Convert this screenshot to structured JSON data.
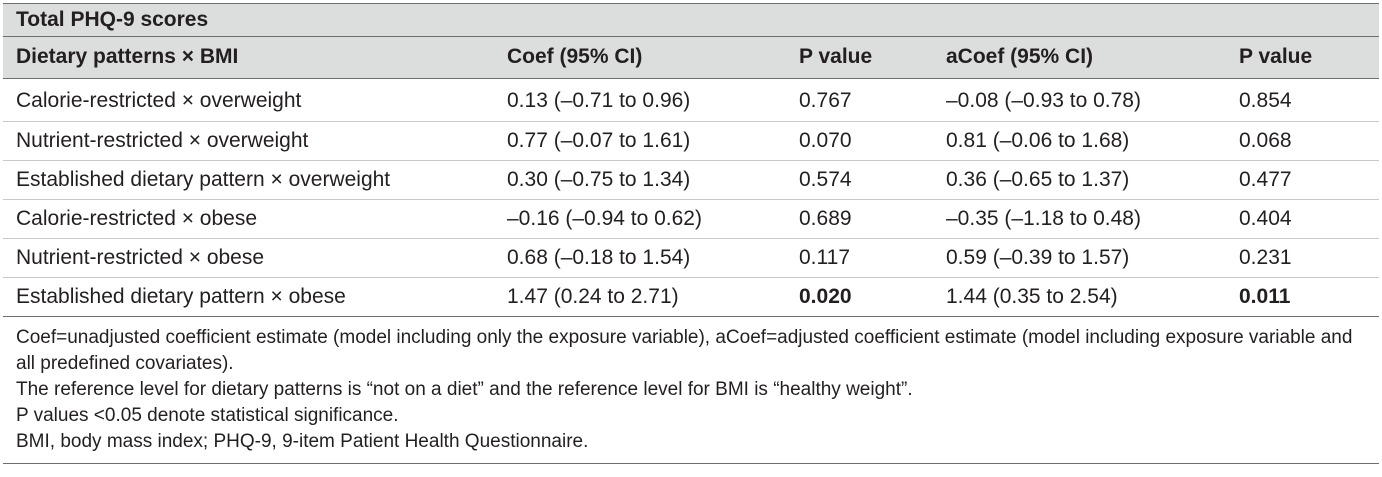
{
  "table_title": "Total PHQ-9 scores",
  "headers": [
    "Dietary patterns × BMI",
    "Coef (95% CI)",
    "P value",
    "aCoef (95% CI)",
    "P value"
  ],
  "rows": [
    [
      "Calorie-restricted × overweight",
      "0.13 (–0.71 to 0.96)",
      "0.767",
      "–0.08 (–0.93 to 0.78)",
      "0.854"
    ],
    [
      "Nutrient-restricted × overweight",
      "0.77 (–0.07 to 1.61)",
      "0.070",
      "0.81 (–0.06 to 1.68)",
      "0.068"
    ],
    [
      "Established dietary pattern × overweight",
      "0.30 (–0.75 to 1.34)",
      "0.574",
      "0.36 (–0.65 to 1.37)",
      "0.477"
    ],
    [
      "Calorie-restricted × obese",
      "–0.16 (–0.94 to 0.62)",
      "0.689",
      "–0.35 (–1.18 to 0.48)",
      "0.404"
    ],
    [
      "Nutrient-restricted × obese",
      "0.68 (–0.18 to 1.54)",
      "0.117",
      "0.59 (–0.39 to 1.57)",
      "0.231"
    ],
    [
      "Established dietary pattern × obese",
      "1.47 (0.24 to 2.71)",
      "0.020",
      "1.44 (0.35 to 2.54)",
      "0.011"
    ]
  ],
  "footnotes": [
    "Coef=unadjusted coefficient estimate (model including only the exposure variable), aCoef=adjusted coefficient estimate (model including exposure variable and all predefined covariates).",
    "The reference level for dietary patterns is “not on a diet” and the reference level for BMI is “healthy weight”.",
    "P values <0.05 denote statistical significance.",
    "BMI, body mass index; PHQ-9, 9-item Patient Health Questionnaire."
  ]
}
